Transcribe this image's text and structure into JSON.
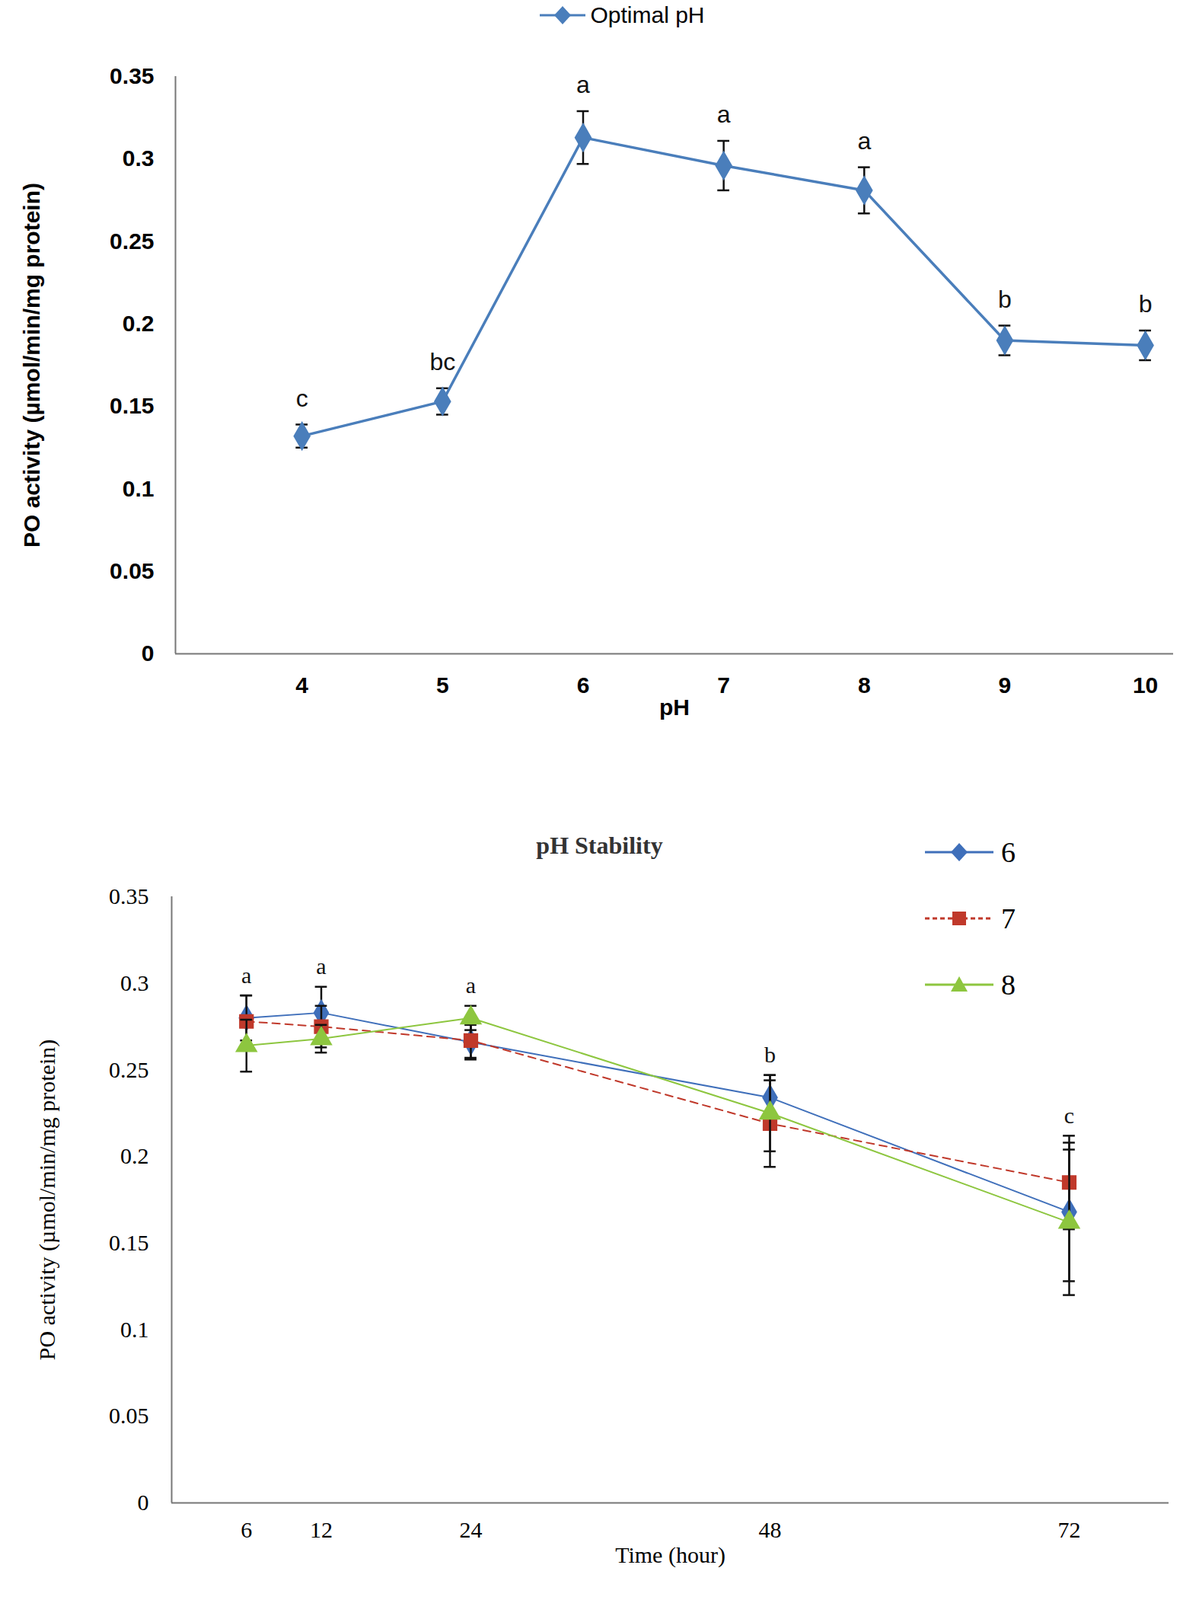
{
  "chart_data": [
    {
      "type": "line",
      "x": [
        4,
        5,
        6,
        7,
        8,
        9,
        10
      ],
      "xlim": [
        3.1,
        10.2
      ],
      "xticks": [
        4,
        5,
        6,
        7,
        8,
        9,
        10
      ],
      "ylim": [
        0,
        0.35
      ],
      "yticks": [
        0,
        0.05,
        0.1,
        0.15,
        0.2,
        0.25,
        0.3,
        0.35
      ],
      "x_label": "pH",
      "y_label": "PO activity (µmol/min/mg protein)",
      "legend": "top",
      "series": [
        {
          "name": "Optimal pH",
          "color": "#4a7ebb",
          "marker": "diamond",
          "line_style": "solid",
          "values": [
            0.132,
            0.153,
            0.313,
            0.296,
            0.281,
            0.19,
            0.187
          ],
          "errors": [
            0.007,
            0.008,
            0.016,
            0.015,
            0.014,
            0.009,
            0.009
          ]
        }
      ],
      "annotations": [
        {
          "x": 4,
          "text": "c"
        },
        {
          "x": 5,
          "text": "bc"
        },
        {
          "x": 6,
          "text": "a"
        },
        {
          "x": 7,
          "text": "a"
        },
        {
          "x": 8,
          "text": "a"
        },
        {
          "x": 9,
          "text": "b"
        },
        {
          "x": 10,
          "text": "b"
        }
      ]
    },
    {
      "type": "line",
      "title": "pH Stability",
      "x": [
        6,
        12,
        24,
        48,
        72
      ],
      "xlim": [
        0,
        80
      ],
      "xticks": [
        6,
        12,
        24,
        48,
        72
      ],
      "ylim": [
        0,
        0.35
      ],
      "yticks": [
        0,
        0.05,
        0.1,
        0.15,
        0.2,
        0.25,
        0.3,
        0.35
      ],
      "x_label": "Time (hour)",
      "y_label": "PO activity (µmol/min/mg protein)",
      "legend": "top-right",
      "series": [
        {
          "name": "6",
          "color": "#3f6fba",
          "marker": "diamond",
          "line_style": "solid",
          "values": [
            0.28,
            0.283,
            0.266,
            0.234,
            0.168
          ],
          "errors": [
            0.013,
            0.015,
            0.01,
            0.013,
            0.04
          ]
        },
        {
          "name": "7",
          "color": "#c0392b",
          "marker": "square",
          "line_style": "dashed",
          "values": [
            0.278,
            0.275,
            0.267,
            0.219,
            0.185
          ],
          "errors": [
            0.015,
            0.012,
            0.01,
            0.025,
            0.027
          ]
        },
        {
          "name": "8",
          "color": "#8dc63f",
          "marker": "triangle",
          "line_style": "solid",
          "values": [
            0.264,
            0.268,
            0.28,
            0.225,
            0.162
          ],
          "errors": [
            0.015,
            0.008,
            0.007,
            0.022,
            0.042
          ]
        }
      ],
      "annotations": [
        {
          "x": 6,
          "text": "a"
        },
        {
          "x": 12,
          "text": "a"
        },
        {
          "x": 24,
          "text": "a"
        },
        {
          "x": 48,
          "text": "b"
        },
        {
          "x": 72,
          "text": "c"
        }
      ]
    }
  ]
}
